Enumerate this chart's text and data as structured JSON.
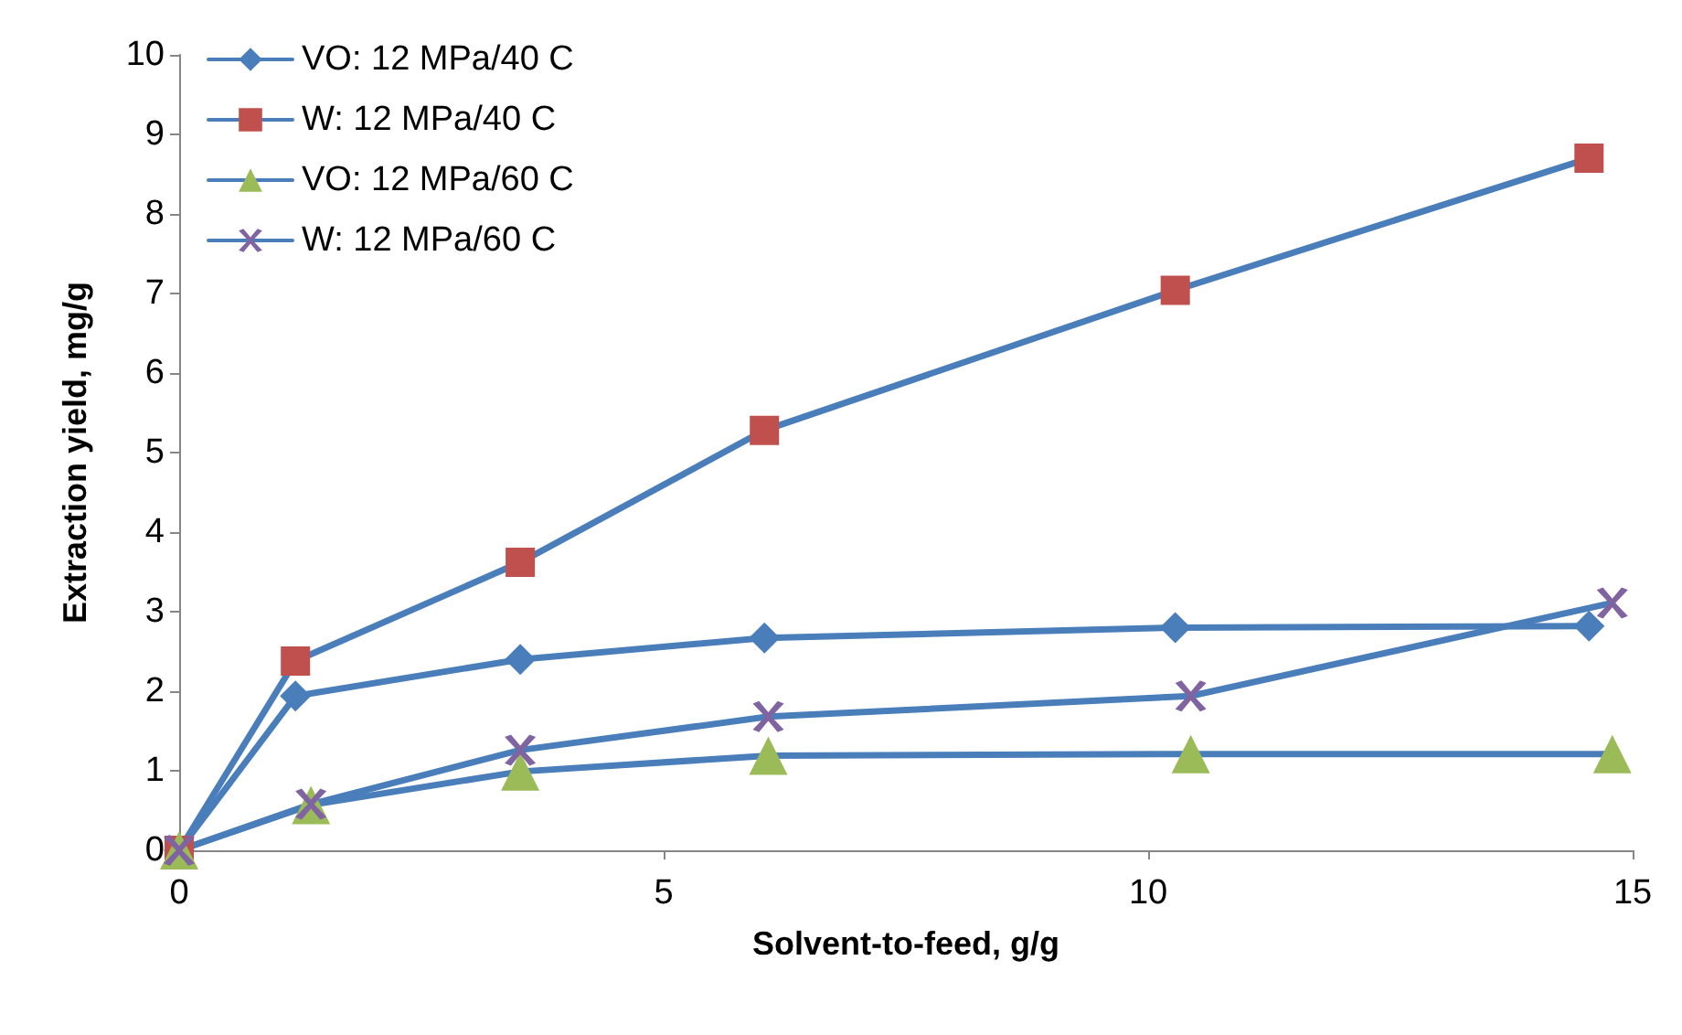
{
  "chart_data": {
    "type": "line",
    "xlabel": "Solvent-to-feed, g/g",
    "ylabel": "Extraction yield, mg/g",
    "xlim": [
      0,
      15
    ],
    "xticks": [
      0,
      5,
      10,
      15
    ],
    "ylim": [
      0,
      10
    ],
    "yticks": [
      0,
      1,
      2,
      3,
      4,
      5,
      6,
      7,
      8,
      9,
      10
    ],
    "grid": false,
    "legend": "top left",
    "series": [
      {
        "name": "VO: 12 MPa/40 C",
        "color": "#4a7ebb",
        "marker": "diamond",
        "x": [
          0,
          1.2,
          3.52,
          6.04,
          10.28,
          14.55
        ],
        "values": [
          0,
          1.94,
          2.4,
          2.67,
          2.8,
          2.82
        ]
      },
      {
        "name": "W: 12 MPa/40 C",
        "color": "#c0504d",
        "marker": "square",
        "x": [
          0,
          1.2,
          3.52,
          6.04,
          10.28,
          14.55
        ],
        "values": [
          0,
          2.38,
          3.62,
          5.28,
          7.04,
          8.7
        ]
      },
      {
        "name": "VO: 12 MPa/60 C",
        "color": "#9bbb59",
        "marker": "triangle",
        "x": [
          0,
          1.36,
          3.52,
          6.08,
          10.44,
          14.79
        ],
        "values": [
          0,
          0.57,
          0.99,
          1.19,
          1.21,
          1.21
        ]
      },
      {
        "name": "W: 12 MPa/60 C",
        "color": "#8064a2",
        "marker": "cross",
        "x": [
          0,
          1.36,
          3.52,
          6.08,
          10.44,
          14.79
        ],
        "values": [
          0,
          0.58,
          1.26,
          1.68,
          1.94,
          3.11
        ]
      }
    ]
  }
}
